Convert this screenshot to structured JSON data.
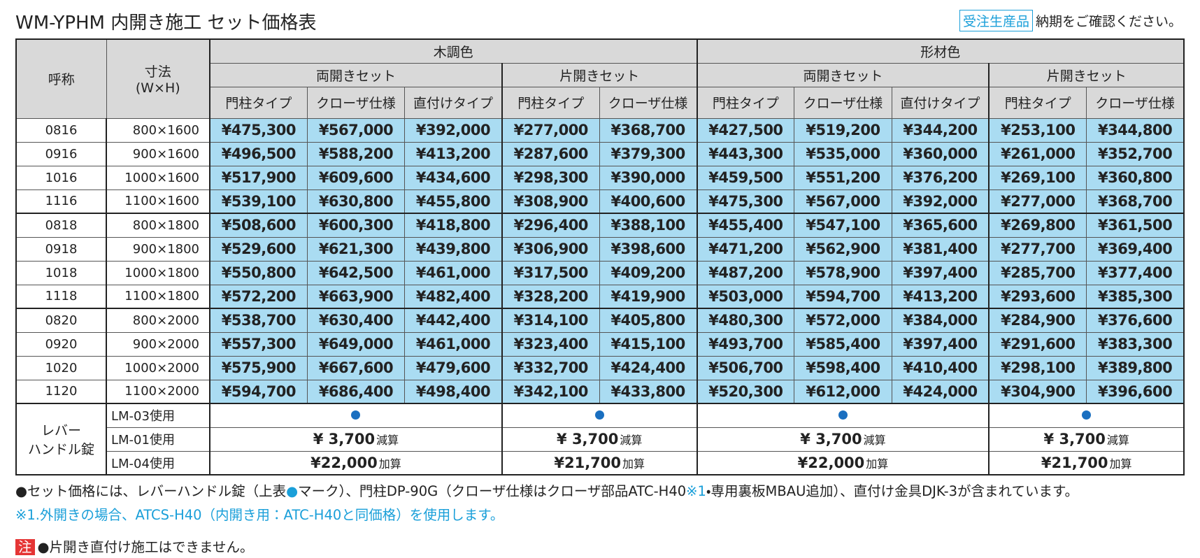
{
  "header": {
    "title": "WM-YPHM 内開き施工 セット価格表",
    "badge": "受注生産品",
    "note": "納期をご確認ください。"
  },
  "table": {
    "head": {
      "name": "呼称",
      "size": [
        "寸法",
        "(W×H)"
      ],
      "groups": [
        {
          "label": "木調色",
          "sets": [
            {
              "label": "両開きセット",
              "types": [
                "門柱タイプ",
                "クローザ仕様",
                "直付けタイプ"
              ]
            },
            {
              "label": "片開きセット",
              "types": [
                "門柱タイプ",
                "クローザ仕様"
              ]
            }
          ]
        },
        {
          "label": "形材色",
          "sets": [
            {
              "label": "両開きセット",
              "types": [
                "門柱タイプ",
                "クローザ仕様",
                "直付けタイプ"
              ]
            },
            {
              "label": "片開きセット",
              "types": [
                "門柱タイプ",
                "クローザ仕様"
              ]
            }
          ]
        }
      ]
    },
    "rows": [
      {
        "code": "0816",
        "size": "800×1600",
        "prices": [
          "¥475,300",
          "¥567,000",
          "¥392,000",
          "¥277,000",
          "¥368,700",
          "¥427,500",
          "¥519,200",
          "¥344,200",
          "¥253,100",
          "¥344,800"
        ]
      },
      {
        "code": "0916",
        "size": "900×1600",
        "prices": [
          "¥496,500",
          "¥588,200",
          "¥413,200",
          "¥287,600",
          "¥379,300",
          "¥443,300",
          "¥535,000",
          "¥360,000",
          "¥261,000",
          "¥352,700"
        ]
      },
      {
        "code": "1016",
        "size": "1000×1600",
        "prices": [
          "¥517,900",
          "¥609,600",
          "¥434,600",
          "¥298,300",
          "¥390,000",
          "¥459,500",
          "¥551,200",
          "¥376,200",
          "¥269,100",
          "¥360,800"
        ]
      },
      {
        "code": "1116",
        "size": "1100×1600",
        "prices": [
          "¥539,100",
          "¥630,800",
          "¥455,800",
          "¥308,900",
          "¥400,600",
          "¥475,300",
          "¥567,000",
          "¥392,000",
          "¥277,000",
          "¥368,700"
        ]
      },
      {
        "code": "0818",
        "size": "800×1800",
        "prices": [
          "¥508,600",
          "¥600,300",
          "¥418,800",
          "¥296,400",
          "¥388,100",
          "¥455,400",
          "¥547,100",
          "¥365,600",
          "¥269,800",
          "¥361,500"
        ]
      },
      {
        "code": "0918",
        "size": "900×1800",
        "prices": [
          "¥529,600",
          "¥621,300",
          "¥439,800",
          "¥306,900",
          "¥398,600",
          "¥471,200",
          "¥562,900",
          "¥381,400",
          "¥277,700",
          "¥369,400"
        ]
      },
      {
        "code": "1018",
        "size": "1000×1800",
        "prices": [
          "¥550,800",
          "¥642,500",
          "¥461,000",
          "¥317,500",
          "¥409,200",
          "¥487,200",
          "¥578,900",
          "¥397,400",
          "¥285,700",
          "¥377,400"
        ]
      },
      {
        "code": "1118",
        "size": "1100×1800",
        "prices": [
          "¥572,200",
          "¥663,900",
          "¥482,400",
          "¥328,200",
          "¥419,900",
          "¥503,000",
          "¥594,700",
          "¥413,200",
          "¥293,600",
          "¥385,300"
        ]
      },
      {
        "code": "0820",
        "size": "800×2000",
        "prices": [
          "¥538,700",
          "¥630,400",
          "¥442,400",
          "¥314,100",
          "¥405,800",
          "¥480,300",
          "¥572,000",
          "¥384,000",
          "¥284,900",
          "¥376,600"
        ]
      },
      {
        "code": "0920",
        "size": "900×2000",
        "prices": [
          "¥557,300",
          "¥649,000",
          "¥461,000",
          "¥323,400",
          "¥415,100",
          "¥493,700",
          "¥585,400",
          "¥397,400",
          "¥291,600",
          "¥383,300"
        ]
      },
      {
        "code": "1020",
        "size": "1000×2000",
        "prices": [
          "¥575,900",
          "¥667,600",
          "¥479,600",
          "¥332,700",
          "¥424,400",
          "¥506,700",
          "¥598,400",
          "¥410,400",
          "¥298,100",
          "¥389,800"
        ]
      },
      {
        "code": "1120",
        "size": "1100×2000",
        "prices": [
          "¥594,700",
          "¥686,400",
          "¥498,400",
          "¥342,100",
          "¥433,800",
          "¥520,300",
          "¥612,000",
          "¥424,000",
          "¥304,900",
          "¥396,600"
        ]
      }
    ],
    "lever": {
      "label": [
        "レバー",
        "ハンドル錠"
      ],
      "options": [
        {
          "name": "LM-03使用"
        },
        {
          "name": "LM-01使用",
          "cells": [
            {
              "price": "¥ 3,700",
              "op": "減算"
            },
            {
              "price": "¥ 3,700",
              "op": "減算"
            },
            {
              "price": "¥ 3,700",
              "op": "減算"
            },
            {
              "price": "¥ 3,700",
              "op": "減算"
            }
          ]
        },
        {
          "name": "LM-04使用",
          "cells": [
            {
              "price": "¥22,000",
              "op": "加算"
            },
            {
              "price": "¥21,700",
              "op": "加算"
            },
            {
              "price": "¥22,000",
              "op": "加算"
            },
            {
              "price": "¥21,700",
              "op": "加算"
            }
          ]
        }
      ]
    }
  },
  "footnotes": {
    "line1": [
      "●セット価格には、レバーハンドル錠（上表",
      "●",
      "マーク）、門柱DP-90G（クローザ仕様はクローザ部品ATC-H40",
      "※1",
      "・専用裏板MBAU追加）、直付け金具DJK-3が含まれています。"
    ],
    "line2": "※1.外開きの場合、ATCS-H40（内開き用：ATC-H40と同価格）を使用します。",
    "caution": {
      "mark": "注",
      "text": "●片開き直付け施工はできません。"
    }
  }
}
